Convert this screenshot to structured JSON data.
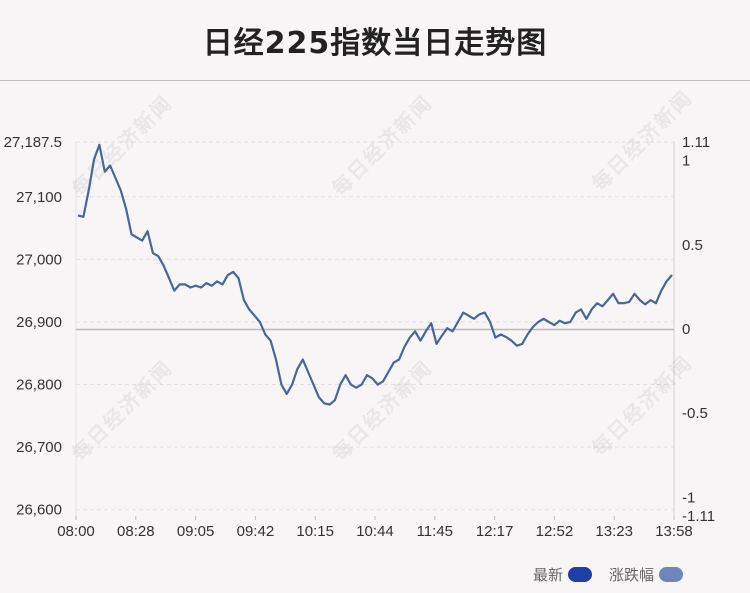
{
  "title": "日经225指数当日走势图",
  "watermark": "每日经济新闻",
  "legend": [
    {
      "label": "最新",
      "color": "#1f3fa8"
    },
    {
      "label": "涨跌幅",
      "color": "#6f86b8"
    }
  ],
  "chart_data": {
    "type": "line",
    "title": "日经225指数当日走势图",
    "baseline": 26888,
    "ylim": [
      26590,
      27187.5
    ],
    "y_ticks": [
      "27,187.5",
      "27,100",
      "27,000",
      "26,900",
      "26,800",
      "26,700",
      "26,600"
    ],
    "y_tick_values": [
      27187.5,
      27100,
      27000,
      26900,
      26800,
      26700,
      26600
    ],
    "y2_ticks": [
      "1.11",
      "1",
      "0.5",
      "0",
      "-0.5",
      "-1",
      "-1.11"
    ],
    "y2_tick_values": [
      1.11,
      1,
      0.5,
      0,
      -0.5,
      -1,
      -1.11
    ],
    "x_ticks": [
      "08:00",
      "08:28",
      "09:05",
      "09:42",
      "10:15",
      "10:44",
      "11:45",
      "12:17",
      "12:52",
      "13:23",
      "13:58"
    ],
    "line_color": "#4a6598",
    "series": [
      {
        "values": [
          27070,
          27068,
          27110,
          27160,
          27183,
          27140,
          27150,
          27130,
          27110,
          27080,
          27040,
          27035,
          27030,
          27045,
          27010,
          27005,
          26990,
          26970,
          26950,
          26960,
          26960,
          26955,
          26958,
          26955,
          26962,
          26958,
          26965,
          26960,
          26975,
          26980,
          26970,
          26935,
          26920,
          26910,
          26900,
          26880,
          26870,
          26840,
          26800,
          26785,
          26800,
          26825,
          26840,
          26820,
          26800,
          26780,
          26770,
          26768,
          26775,
          26800,
          26815,
          26800,
          26795,
          26800,
          26815,
          26810,
          26800,
          26805,
          26820,
          26835,
          26840,
          26860,
          26875,
          26885,
          26870,
          26885,
          26898,
          26865,
          26878,
          26890,
          26885,
          26900,
          26915,
          26910,
          26905,
          26912,
          26915,
          26900,
          26875,
          26880,
          26876,
          26870,
          26862,
          26865,
          26880,
          26892,
          26900,
          26905,
          26900,
          26895,
          26902,
          26898,
          26900,
          26915,
          26920,
          26905,
          26920,
          26930,
          26925,
          26935,
          26945,
          26930,
          26930,
          26932,
          26945,
          26935,
          26928,
          26935,
          26930,
          26950,
          26965,
          26975
        ]
      }
    ]
  }
}
